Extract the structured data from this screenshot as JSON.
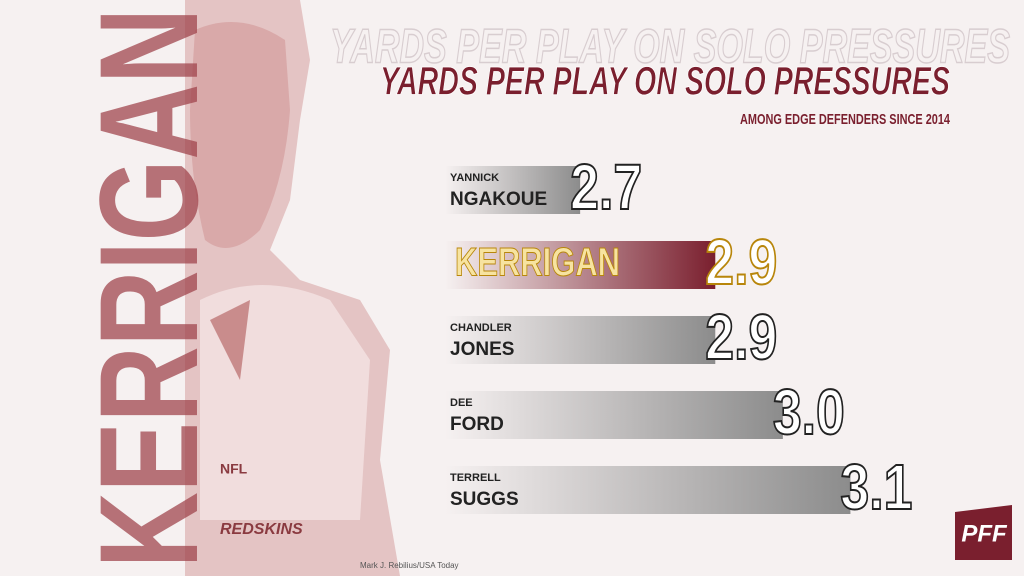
{
  "chart_data": {
    "type": "hbar",
    "title": "YARDS PER PLAY ON SOLO PRESSURES",
    "subtitle": "AMONG EDGE DEFENDERS SINCE 2014",
    "side_label": "KERRIGAN",
    "categories": [
      "NGAKOUE",
      "KERRIGAN",
      "JONES",
      "FORD",
      "SUGGS"
    ],
    "first_names": [
      "YANNICK",
      null,
      "CHANDLER",
      "DEE",
      "TERRELL"
    ],
    "values": [
      2.7,
      2.9,
      2.9,
      3.0,
      3.1
    ],
    "value_labels": [
      "2.7",
      "2.9",
      "2.9",
      "3.0",
      "3.1"
    ],
    "colors": [
      "#8c8c8c",
      "#7a1f2e",
      "#8c8c8c",
      "#8c8c8c",
      "#8c8c8c"
    ],
    "xlim": [
      2.5,
      3.2
    ],
    "photo_texts": [
      "NFL",
      "REDSKINS"
    ],
    "credit": "Mark J. Rebilius/USA Today",
    "logo": "PFF"
  }
}
